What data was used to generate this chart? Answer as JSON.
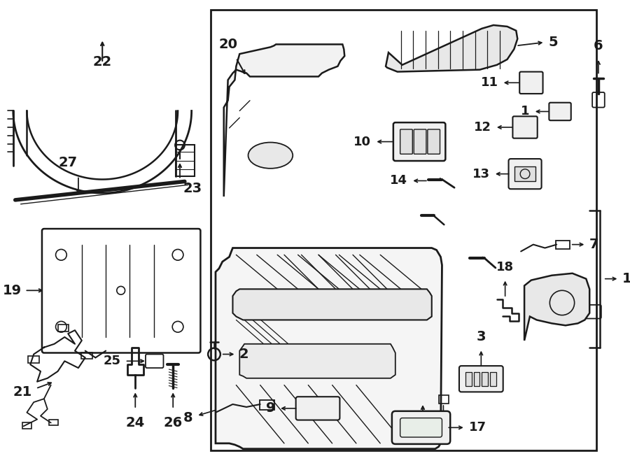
{
  "bg_color": "#ffffff",
  "line_color": "#1a1a1a",
  "figsize": [
    9.0,
    6.62
  ],
  "dpi": 100
}
